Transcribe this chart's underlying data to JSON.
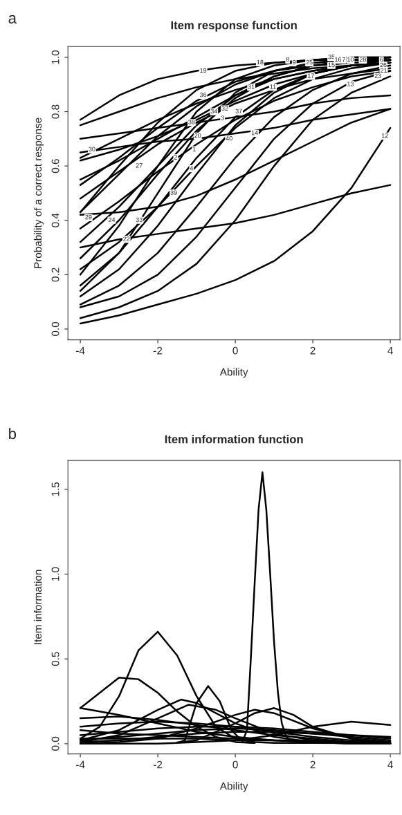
{
  "chart_data": [
    {
      "type": "line",
      "title": "Item response function",
      "xlabel": "Ability",
      "ylabel": "Probability of a correct response",
      "xlim": [
        -4.32,
        4.25
      ],
      "ylim": [
        -0.04,
        1.04
      ],
      "xticks": [
        -4,
        -2,
        0,
        2,
        4
      ],
      "yticks": [
        {
          "value": 0,
          "label": "0.0"
        },
        {
          "value": 0.2,
          "label": "0.2"
        },
        {
          "value": 0.4,
          "label": "0.4"
        },
        {
          "value": 0.6,
          "label": "0.6"
        },
        {
          "value": 0.8,
          "label": "0.8"
        },
        {
          "value": 1,
          "label": "1.0"
        }
      ],
      "grid": false,
      "legend": false,
      "marker": "none",
      "line_style": "solid",
      "x": [
        -4,
        -3,
        -2,
        -1,
        0,
        1,
        2,
        3,
        4
      ],
      "series": [
        {
          "color": "#000000",
          "values": [
            0.77,
            0.86,
            0.92,
            0.95,
            0.97,
            0.98,
            0.99,
            0.99,
            1.0
          ]
        },
        {
          "color": "#000000",
          "values": [
            0.75,
            0.8,
            0.85,
            0.89,
            0.92,
            0.94,
            0.96,
            0.97,
            0.98
          ]
        },
        {
          "color": "#000000",
          "values": [
            0.7,
            0.72,
            0.74,
            0.76,
            0.78,
            0.8,
            0.83,
            0.85,
            0.86
          ]
        },
        {
          "color": "#000000",
          "values": [
            0.65,
            0.67,
            0.69,
            0.7,
            0.72,
            0.74,
            0.77,
            0.79,
            0.81
          ]
        },
        {
          "color": "#000000",
          "values": [
            0.63,
            0.7,
            0.77,
            0.83,
            0.88,
            0.92,
            0.95,
            0.97,
            0.98
          ]
        },
        {
          "color": "#000000",
          "values": [
            0.62,
            0.66,
            0.71,
            0.77,
            0.84,
            0.9,
            0.94,
            0.97,
            0.98
          ]
        },
        {
          "color": "#000000",
          "values": [
            0.55,
            0.62,
            0.7,
            0.78,
            0.86,
            0.92,
            0.95,
            0.97,
            0.98
          ]
        },
        {
          "color": "#000000",
          "values": [
            0.53,
            0.63,
            0.74,
            0.84,
            0.91,
            0.95,
            0.98,
            0.99,
            0.99
          ]
        },
        {
          "color": "#000000",
          "values": [
            0.48,
            0.58,
            0.68,
            0.76,
            0.83,
            0.88,
            0.92,
            0.94,
            0.96
          ]
        },
        {
          "color": "#000000",
          "values": [
            0.43,
            0.6,
            0.76,
            0.88,
            0.95,
            0.98,
            0.99,
            1.0,
            1.0
          ]
        },
        {
          "color": "#000000",
          "values": [
            0.43,
            0.57,
            0.71,
            0.82,
            0.9,
            0.95,
            0.97,
            0.98,
            0.99
          ]
        },
        {
          "color": "#000000",
          "values": [
            0.42,
            0.43,
            0.45,
            0.49,
            0.55,
            0.62,
            0.69,
            0.76,
            0.81
          ]
        },
        {
          "color": "#000000",
          "values": [
            0.37,
            0.47,
            0.58,
            0.68,
            0.77,
            0.84,
            0.89,
            0.93,
            0.95
          ]
        },
        {
          "color": "#000000",
          "values": [
            0.32,
            0.45,
            0.6,
            0.75,
            0.86,
            0.93,
            0.97,
            0.98,
            0.99
          ]
        },
        {
          "color": "#000000",
          "values": [
            0.3,
            0.33,
            0.35,
            0.37,
            0.39,
            0.42,
            0.46,
            0.5,
            0.53
          ]
        },
        {
          "color": "#000000",
          "values": [
            0.26,
            0.4,
            0.57,
            0.73,
            0.85,
            0.93,
            0.97,
            0.99,
            0.99
          ]
        },
        {
          "color": "#000000",
          "values": [
            0.22,
            0.32,
            0.45,
            0.6,
            0.74,
            0.85,
            0.92,
            0.96,
            0.98
          ]
        },
        {
          "color": "#000000",
          "values": [
            0.2,
            0.38,
            0.6,
            0.8,
            0.92,
            0.97,
            0.99,
            1.0,
            1.0
          ]
        },
        {
          "color": "#000000",
          "values": [
            0.16,
            0.28,
            0.45,
            0.63,
            0.78,
            0.88,
            0.94,
            0.97,
            0.98
          ]
        },
        {
          "color": "#000000",
          "values": [
            0.14,
            0.28,
            0.5,
            0.72,
            0.87,
            0.95,
            0.98,
            0.99,
            1.0
          ]
        },
        {
          "color": "#000000",
          "values": [
            0.12,
            0.22,
            0.38,
            0.57,
            0.75,
            0.87,
            0.94,
            0.97,
            0.99
          ]
        },
        {
          "color": "#000000",
          "values": [
            0.09,
            0.16,
            0.28,
            0.45,
            0.63,
            0.78,
            0.88,
            0.94,
            0.97
          ]
        },
        {
          "color": "#000000",
          "values": [
            0.08,
            0.12,
            0.2,
            0.34,
            0.52,
            0.7,
            0.83,
            0.91,
            0.95
          ]
        },
        {
          "color": "#000000",
          "values": [
            0.04,
            0.08,
            0.14,
            0.24,
            0.4,
            0.6,
            0.77,
            0.87,
            0.93
          ]
        },
        {
          "color": "#000000",
          "values": [
            0.02,
            0.05,
            0.09,
            0.13,
            0.18,
            0.25,
            0.36,
            0.52,
            0.74
          ]
        }
      ],
      "annotations": [
        "a",
        {
          "text": "19",
          "x": -0.83,
          "y": 0.95
        },
        {
          "text": "18",
          "x": 0.64,
          "y": 0.98
        },
        {
          "text": "8",
          "x": 1.35,
          "y": 0.99
        },
        {
          "text": "9",
          "x": 1.52,
          "y": 0.98
        },
        {
          "text": "25",
          "x": 1.91,
          "y": 0.98
        },
        {
          "text": "35",
          "x": 2.48,
          "y": 1.0
        },
        {
          "text": "15",
          "x": 2.48,
          "y": 0.97
        },
        {
          "text": "16",
          "x": 2.65,
          "y": 0.99
        },
        {
          "text": "7",
          "x": 2.8,
          "y": 0.99
        },
        {
          "text": "10",
          "x": 2.97,
          "y": 0.99
        },
        {
          "text": "28",
          "x": 3.29,
          "y": 0.99
        },
        {
          "text": "6",
          "x": 3.77,
          "y": 0.99
        },
        {
          "text": "26",
          "x": 3.82,
          "y": 0.97
        },
        {
          "text": "21",
          "x": 3.83,
          "y": 0.95
        },
        {
          "text": "23",
          "x": 3.68,
          "y": 0.93
        },
        {
          "text": "17",
          "x": 1.95,
          "y": 0.93
        },
        {
          "text": "13",
          "x": 2.97,
          "y": 0.9
        },
        {
          "text": "31",
          "x": 0.41,
          "y": 0.89
        },
        {
          "text": "11",
          "x": 0.97,
          "y": 0.89
        },
        {
          "text": "36",
          "x": -0.83,
          "y": 0.86
        },
        {
          "text": "34",
          "x": -0.55,
          "y": 0.8
        },
        {
          "text": "32",
          "x": -0.27,
          "y": 0.81
        },
        {
          "text": "3",
          "x": -0.33,
          "y": 0.775
        },
        {
          "text": "37",
          "x": 0.09,
          "y": 0.8
        },
        {
          "text": "38",
          "x": -1.13,
          "y": 0.76
        },
        {
          "text": "20",
          "x": -0.97,
          "y": 0.71
        },
        {
          "text": "40",
          "x": -0.16,
          "y": 0.7
        },
        {
          "text": "14",
          "x": 0.5,
          "y": 0.72
        },
        {
          "text": "12",
          "x": 3.86,
          "y": 0.71
        },
        {
          "text": "30",
          "x": -3.7,
          "y": 0.66
        },
        {
          "text": "1",
          "x": -1.06,
          "y": 0.66
        },
        {
          "text": "2",
          "x": -1.54,
          "y": 0.63
        },
        {
          "text": "27",
          "x": -2.48,
          "y": 0.6
        },
        {
          "text": "4",
          "x": -1.13,
          "y": 0.59
        },
        {
          "text": "39",
          "x": -1.59,
          "y": 0.5
        },
        {
          "text": "29",
          "x": -3.79,
          "y": 0.41
        },
        {
          "text": "24",
          "x": -3.19,
          "y": 0.4
        },
        {
          "text": "33",
          "x": -2.48,
          "y": 0.4
        },
        {
          "text": "22",
          "x": -2.81,
          "y": 0.33
        }
      ]
    },
    {
      "type": "line",
      "title": "Item information function",
      "xlabel": "Ability",
      "ylabel": "Item information",
      "xlim": [
        -4.32,
        4.25
      ],
      "ylim": [
        -0.06,
        1.67
      ],
      "xticks": [
        -4,
        -2,
        0,
        2,
        4
      ],
      "yticks": [
        {
          "value": 0,
          "label": "0.0"
        },
        0.5,
        {
          "value": 1,
          "label": "1.0"
        },
        1.5
      ],
      "grid": false,
      "legend": false,
      "marker": "none",
      "line_style": "solid",
      "series": [
        {
          "color": "#000000",
          "x": [
            -4,
            -3.5,
            -3,
            -2.5,
            -2,
            -1.5,
            -1,
            -0.5,
            0,
            0.5,
            1,
            2,
            3,
            4
          ],
          "values": [
            0.03,
            0.1,
            0.28,
            0.55,
            0.66,
            0.52,
            0.28,
            0.1,
            0.03,
            0.01,
            0.005,
            0.004,
            0.003,
            0.002
          ]
        },
        {
          "color": "#000000",
          "x": [
            -4,
            -3.5,
            -3,
            -2.5,
            -2,
            -1.5,
            -1,
            -0.5,
            0,
            0.5
          ],
          "values": [
            0.21,
            0.3,
            0.39,
            0.38,
            0.3,
            0.19,
            0.1,
            0.04,
            0.01,
            0.005
          ]
        },
        {
          "color": "#000000",
          "x": [
            -1.5,
            -1.3,
            -1,
            -0.7,
            -0.4,
            -0.1,
            0.2,
            0.5
          ],
          "values": [
            0.005,
            0.02,
            0.24,
            0.34,
            0.25,
            0.08,
            0.01,
            0.004
          ]
        },
        {
          "color": "#000000",
          "x": [
            -4,
            -3,
            -2,
            -1.4,
            -1,
            0,
            1,
            2,
            3,
            4
          ],
          "values": [
            0.02,
            0.08,
            0.2,
            0.26,
            0.24,
            0.12,
            0.04,
            0.01,
            0,
            0
          ]
        },
        {
          "color": "#000000",
          "x": [
            -4,
            -3,
            -2,
            -1.2,
            -0.5,
            0,
            1,
            2,
            3,
            4
          ],
          "values": [
            0.01,
            0.05,
            0.15,
            0.23,
            0.2,
            0.15,
            0.06,
            0.02,
            0,
            0
          ]
        },
        {
          "color": "#000000",
          "x": [
            -1.5,
            -1,
            0,
            0.5,
            1,
            1.5,
            2,
            3,
            4
          ],
          "values": [
            0.008,
            0.02,
            0.12,
            0.18,
            0.21,
            0.17,
            0.1,
            0.03,
            0.01
          ]
        },
        {
          "color": "#000000",
          "x": [
            -4,
            -3,
            -2,
            -1,
            0,
            0.5,
            1,
            2,
            3,
            4
          ],
          "values": [
            0,
            0.01,
            0.03,
            0.09,
            0.17,
            0.2,
            0.18,
            0.09,
            0.03,
            0.01
          ]
        },
        {
          "color": "#000000",
          "x": [
            -4,
            -3,
            -2,
            -1,
            0,
            1,
            2,
            3,
            4
          ],
          "values": [
            0,
            0,
            0,
            0.01,
            0.02,
            0.05,
            0.1,
            0.13,
            0.11
          ]
        },
        {
          "color": "#000000",
          "x": [
            -4,
            -3,
            -2,
            -1,
            0,
            1,
            2,
            3,
            4
          ],
          "values": [
            0.21,
            0.17,
            0.12,
            0.07,
            0.04,
            0.02,
            0.01,
            0,
            0
          ]
        },
        {
          "color": "#000000",
          "x": [
            -4,
            -3,
            -2,
            -1,
            0,
            1,
            2,
            3,
            4
          ],
          "values": [
            0.15,
            0.16,
            0.14,
            0.11,
            0.08,
            0.05,
            0.03,
            0.01,
            0
          ]
        },
        {
          "color": "#000000",
          "x": [
            -4,
            -3,
            -2,
            -1,
            0,
            1,
            2,
            3,
            4
          ],
          "values": [
            0.1,
            0.12,
            0.13,
            0.12,
            0.1,
            0.07,
            0.04,
            0.02,
            0.01
          ]
        },
        {
          "color": "#000000",
          "x": [
            -4,
            -3,
            -2,
            -1,
            0,
            1,
            2,
            3,
            4
          ],
          "values": [
            0.05,
            0.07,
            0.09,
            0.1,
            0.1,
            0.09,
            0.07,
            0.05,
            0.03
          ]
        },
        {
          "color": "#000000",
          "x": [
            -4,
            -3,
            -2,
            -1,
            0,
            1,
            2,
            3,
            4
          ],
          "values": [
            0.02,
            0.04,
            0.06,
            0.08,
            0.09,
            0.08,
            0.06,
            0.04,
            0.02
          ]
        },
        {
          "color": "#000000",
          "x": [
            -4,
            -3,
            -2,
            -1,
            0,
            1,
            2,
            3,
            4
          ],
          "values": [
            0.01,
            0.02,
            0.04,
            0.06,
            0.07,
            0.07,
            0.06,
            0.05,
            0.04
          ]
        },
        {
          "color": "#000000",
          "x": [
            -4,
            -3,
            -2,
            -1,
            0,
            1,
            2,
            3,
            4
          ],
          "values": [
            0.08,
            0.06,
            0.05,
            0.04,
            0.03,
            0.02,
            0.01,
            0.01,
            0
          ]
        },
        {
          "color": "#000000",
          "x": [
            -4,
            -3,
            -2,
            -1,
            0,
            1,
            2,
            3,
            4
          ],
          "values": [
            0.03,
            0.03,
            0.03,
            0.03,
            0.02,
            0.02,
            0.02,
            0.01,
            0.01
          ]
        },
        {
          "color": "#000000",
          "x": [
            0.2,
            0.3,
            0.4,
            0.5,
            0.6,
            0.7,
            0.8,
            0.9,
            1.0,
            1.1,
            1.2,
            1.3,
            1.4
          ],
          "values": [
            0.02,
            0.08,
            0.5,
            0.95,
            1.38,
            1.6,
            1.38,
            1.0,
            0.6,
            0.3,
            0.12,
            0.05,
            0.02
          ]
        }
      ],
      "annotations": [
        "b"
      ]
    }
  ]
}
